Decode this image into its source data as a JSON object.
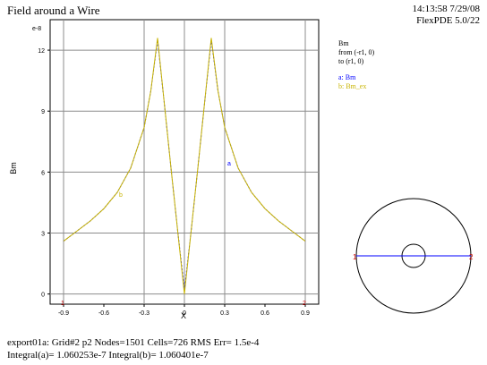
{
  "header": {
    "title": "Field around a Wire",
    "time": "14:13:58 7/29/08",
    "version": "FlexPDE 5.0/22"
  },
  "legend": {
    "line1": "Bm",
    "line2": "from (-r1, 0)",
    "line3": "to (r1, 0)",
    "entry_a": "a: Bm",
    "entry_b": "b: Bm_ex",
    "color_a": "#0000ff",
    "color_b": "#c8b400"
  },
  "chart_data": {
    "type": "line",
    "exponent_label": "e-8",
    "xlabel": "X",
    "ylabel": "Bm",
    "xlim": [
      -1.0,
      1.0
    ],
    "ylim": [
      -0.5,
      13.5
    ],
    "x_ticks": [
      "-0.9",
      "-0.6",
      "-0.3",
      "0",
      "0.3",
      "0.6",
      "0.9"
    ],
    "x_tick_values": [
      -0.9,
      -0.6,
      -0.3,
      0,
      0.3,
      0.6,
      0.9
    ],
    "y_ticks": [
      "0",
      "3",
      "6",
      "9",
      "12"
    ],
    "y_tick_values": [
      0,
      3,
      6,
      9,
      12
    ],
    "grid_x": [
      -0.9,
      -0.3,
      0,
      0.3,
      0.9
    ],
    "grid_y": [
      0,
      3,
      6,
      9,
      12
    ],
    "end_labels": [
      "1",
      "2"
    ],
    "curve_labels": [
      "b",
      "a"
    ],
    "x": [
      -0.9,
      -0.8,
      -0.7,
      -0.6,
      -0.5,
      -0.4,
      -0.3,
      -0.25,
      -0.2,
      -0.15,
      -0.1,
      -0.05,
      0.0,
      0.05,
      0.1,
      0.15,
      0.2,
      0.25,
      0.3,
      0.4,
      0.5,
      0.6,
      0.7,
      0.8,
      0.9
    ],
    "series": [
      {
        "name": "a: Bm",
        "color": "#0000ff",
        "values": [
          2.6,
          3.1,
          3.6,
          4.2,
          5.0,
          6.2,
          8.2,
          10.0,
          12.5,
          9.4,
          6.2,
          3.1,
          0.2,
          3.1,
          6.2,
          9.4,
          12.5,
          10.0,
          8.2,
          6.2,
          5.0,
          4.2,
          3.6,
          3.1,
          2.6
        ]
      },
      {
        "name": "b: Bm_ex",
        "color": "#c8b400",
        "values": [
          2.6,
          3.1,
          3.6,
          4.2,
          5.0,
          6.2,
          8.2,
          10.0,
          12.6,
          9.4,
          6.2,
          3.1,
          0.0,
          3.1,
          6.2,
          9.4,
          12.6,
          10.0,
          8.2,
          6.2,
          5.0,
          4.2,
          3.6,
          3.1,
          2.6
        ]
      }
    ]
  },
  "footer": {
    "line1": "export01a:  Grid#2  p2  Nodes=1501 Cells=726 RMS Err= 1.5e-4",
    "line2": "Integral(a)=  1.060253e-7 Integral(b)=  1.060401e-7"
  },
  "inset": {
    "label_left": "1",
    "label_right": "2",
    "path_color": "#0000ff",
    "marker_color": "#cc0000"
  }
}
